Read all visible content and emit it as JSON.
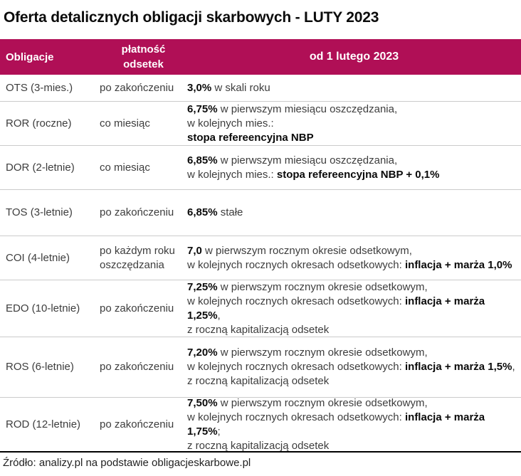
{
  "title": "Oferta detalicznych obligacji skarbowych - LUTY 2023",
  "colors": {
    "header_bg": "#B00F56",
    "header_text": "#FFFFFF",
    "body_text": "#3D3D3D",
    "emphasis_text": "#0A0A0A",
    "divider": "#CBCBCB",
    "rule": "#000000"
  },
  "table": {
    "header": {
      "obligacje": "Obligacje",
      "platnosc_line1": "płatność",
      "platnosc_line2": "odsetek",
      "od": "od 1 lutego 2023"
    },
    "rows": [
      {
        "bond": "OTS (3-mies.)",
        "payment": "po zakończeniu",
        "lines": [
          [
            {
              "b": true,
              "t": "3,0%"
            },
            {
              "b": false,
              "t": " w skali roku"
            }
          ]
        ]
      },
      {
        "bond": "ROR (roczne)",
        "payment": "co miesiąc",
        "lines": [
          [
            {
              "b": true,
              "t": "6,75%"
            },
            {
              "b": false,
              "t": " w pierwszym miesiącu oszczędzania,"
            }
          ],
          [
            {
              "b": false,
              "t": "w kolejnych mies.:"
            }
          ],
          [
            {
              "b": true,
              "t": "stopa refereencyjna NBP"
            }
          ]
        ]
      },
      {
        "bond": "DOR (2-letnie)",
        "payment": "co miesiąc",
        "lines": [
          [
            {
              "b": true,
              "t": "6,85%"
            },
            {
              "b": false,
              "t": " w pierwszym miesiącu oszczędzania,"
            }
          ],
          [
            {
              "b": false,
              "t": "w kolejnych mies.: "
            },
            {
              "b": true,
              "t": "stopa refereencyjna NBP + 0,1%"
            }
          ]
        ]
      },
      {
        "bond": "TOS (3-letnie)",
        "payment": "po zakończeniu",
        "lines": [
          [
            {
              "b": true,
              "t": "6,85%"
            },
            {
              "b": false,
              "t": " stałe"
            }
          ]
        ]
      },
      {
        "bond": "COI (4-letnie)",
        "payment": "po każdym roku oszczędzania",
        "lines": [
          [
            {
              "b": true,
              "t": "7,0"
            },
            {
              "b": false,
              "t": " w pierwszym rocznym okresie odsetkowym,"
            }
          ],
          [
            {
              "b": false,
              "t": "w kolejnych rocznych okresach odsetkowych: "
            },
            {
              "b": true,
              "t": "inflacja + marża 1,0%"
            }
          ]
        ]
      },
      {
        "bond": "EDO (10-letnie)",
        "payment": "po zakończeniu",
        "lines": [
          [
            {
              "b": true,
              "t": "7,25%"
            },
            {
              "b": false,
              "t": " w pierwszym rocznym okresie odsetkowym,"
            }
          ],
          [
            {
              "b": false,
              "t": "w kolejnych rocznych okresach odsetkowych: "
            },
            {
              "b": true,
              "t": "inflacja + marża 1,25%"
            },
            {
              "b": false,
              "t": ","
            }
          ],
          [
            {
              "b": false,
              "t": "z roczną kapitalizacją odsetek"
            }
          ]
        ]
      },
      {
        "bond": "ROS (6-letnie)",
        "payment": "po zakończeniu",
        "lines": [
          [
            {
              "b": true,
              "t": "7,20%"
            },
            {
              "b": false,
              "t": " w pierwszym rocznym okresie odsetkowym,"
            }
          ],
          [
            {
              "b": false,
              "t": "w kolejnych rocznych okresach odsetkowych: "
            },
            {
              "b": true,
              "t": "inflacja + marża 1,5%"
            },
            {
              "b": false,
              "t": ","
            }
          ],
          [
            {
              "b": false,
              "t": "z roczną kapitalizacją odsetek"
            }
          ]
        ]
      },
      {
        "bond": "ROD (12-letnie)",
        "payment": "po zakończeniu",
        "lines": [
          [
            {
              "b": true,
              "t": "7,50%"
            },
            {
              "b": false,
              "t": " w pierwszym rocznym okresie odsetkowym,"
            }
          ],
          [
            {
              "b": false,
              "t": "w kolejnych rocznych okresach odsetkowych: "
            },
            {
              "b": true,
              "t": "inflacja + marża 1,75%"
            },
            {
              "b": false,
              "t": ";"
            }
          ],
          [
            {
              "b": false,
              "t": "z roczną kapitalizacją odsetek"
            }
          ]
        ]
      }
    ]
  },
  "source": "Źródło: analizy.pl na podstawie obligacjeskarbowe.pl"
}
